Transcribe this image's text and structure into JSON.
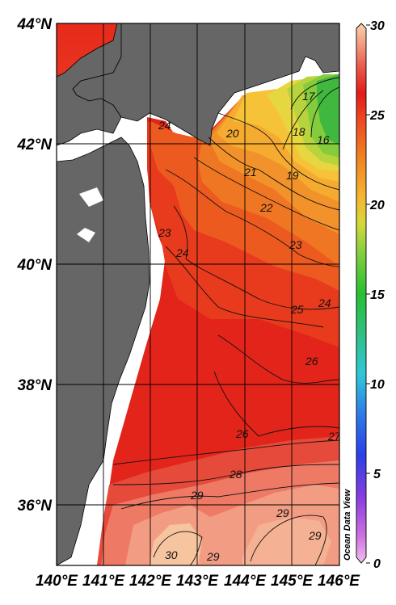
{
  "map": {
    "latitude_labels": [
      "44°N",
      "42°N",
      "40°N",
      "38°N",
      "36°N"
    ],
    "longitude_labels": [
      "140°E",
      "141°E",
      "142°E",
      "143°E",
      "144°E",
      "145°E",
      "146°E"
    ],
    "credit": "Ocean Data View",
    "contour_labels": [
      "17",
      "16",
      "18",
      "19",
      "20",
      "21",
      "22",
      "23",
      "24",
      "24",
      "25",
      "26",
      "26",
      "27",
      "28",
      "29",
      "29",
      "29",
      "29",
      "30",
      "24",
      "23"
    ]
  },
  "colorbar": {
    "ticks": [
      "30",
      "25",
      "20",
      "15",
      "10",
      "5",
      "0"
    ],
    "range": [
      0,
      30
    ],
    "colors": [
      "#e58de8",
      "#a040e0",
      "#2040e8",
      "#30a0e8",
      "#30d0c0",
      "#30c040",
      "#70d040",
      "#c0d830",
      "#f5c030",
      "#f08a20",
      "#ee5020",
      "#e02018",
      "#ec6a55",
      "#f4a386",
      "#f8cfa8"
    ]
  }
}
